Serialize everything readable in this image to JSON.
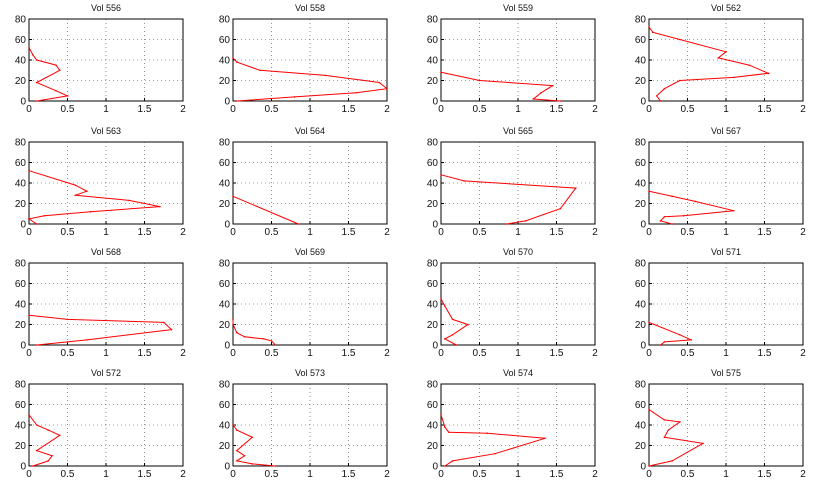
{
  "chart_data": {
    "type": "line",
    "layout": "4x4 small multiples",
    "grid": true,
    "axes": {
      "xlim": [
        0,
        2
      ],
      "ylim": [
        0,
        80
      ],
      "xticks": [
        "0",
        "0.5",
        "1",
        "1.5",
        "2"
      ],
      "yticks": [
        "0",
        "20",
        "40",
        "60",
        "80"
      ]
    },
    "colors": {
      "series": "#ff0000",
      "background": "#ffffff",
      "axes": "#000000"
    },
    "panels": [
      {
        "title": "Vol 556",
        "x": [
          0.1,
          0.5,
          0.35,
          0.1,
          0.4,
          0.35,
          0.1,
          0.05,
          0.0
        ],
        "y": [
          0,
          5,
          10,
          18,
          30,
          35,
          40,
          45,
          52
        ]
      },
      {
        "title": "Vol 558",
        "x": [
          0.05,
          0.8,
          1.6,
          2.0,
          1.9,
          1.2,
          0.35,
          0.05,
          0.0
        ],
        "y": [
          0,
          4,
          8,
          12,
          18,
          25,
          30,
          38,
          42
        ]
      },
      {
        "title": "Vol 559",
        "x": [
          1.55,
          1.2,
          1.3,
          1.45,
          0.5,
          0.0
        ],
        "y": [
          0,
          2,
          8,
          15,
          20,
          28
        ]
      },
      {
        "title": "Vol 562",
        "x": [
          0.15,
          0.1,
          0.2,
          0.4,
          1.1,
          1.55,
          1.3,
          0.9,
          1.0,
          0.4,
          0.05,
          0.0
        ],
        "y": [
          0,
          5,
          12,
          20,
          23,
          27,
          35,
          42,
          48,
          60,
          67,
          72
        ]
      },
      {
        "title": "Vol 563",
        "x": [
          0.1,
          0.0,
          0.2,
          0.8,
          1.7,
          1.3,
          0.6,
          0.75,
          0.6,
          0.0
        ],
        "y": [
          0,
          5,
          8,
          12,
          17,
          23,
          28,
          32,
          38,
          52
        ]
      },
      {
        "title": "Vol 564",
        "x": [
          0.85,
          0.0
        ],
        "y": [
          0,
          27
        ]
      },
      {
        "title": "Vol 565",
        "x": [
          0.85,
          1.1,
          1.55,
          1.75,
          0.3,
          0.0
        ],
        "y": [
          0,
          3,
          15,
          35,
          42,
          48
        ]
      },
      {
        "title": "Vol 567",
        "x": [
          0.3,
          0.15,
          0.2,
          0.45,
          1.1,
          0.6,
          0.3,
          0.0
        ],
        "y": [
          0,
          3,
          7,
          8,
          13,
          22,
          27,
          32
        ]
      },
      {
        "title": "Vol 568",
        "x": [
          0.1,
          0.5,
          0.75,
          1.85,
          1.75,
          0.5,
          0.0
        ],
        "y": [
          0,
          3,
          5,
          15,
          22,
          25,
          29
        ]
      },
      {
        "title": "Vol 569",
        "x": [
          0.55,
          0.5,
          0.4,
          0.15,
          0.05,
          0.0,
          0.0
        ],
        "y": [
          0,
          4,
          6,
          8,
          12,
          20,
          25
        ]
      },
      {
        "title": "Vol 570",
        "x": [
          0.2,
          0.05,
          0.15,
          0.35,
          0.15,
          0.05,
          0.0
        ],
        "y": [
          0,
          6,
          10,
          20,
          25,
          38,
          45
        ]
      },
      {
        "title": "Vol 571",
        "x": [
          0.15,
          0.2,
          0.55,
          0.4,
          0.0
        ],
        "y": [
          0,
          3,
          5,
          10,
          22
        ]
      },
      {
        "title": "Vol 572",
        "x": [
          0.05,
          0.25,
          0.3,
          0.1,
          0.4,
          0.25,
          0.1,
          0.0
        ],
        "y": [
          0,
          5,
          10,
          15,
          30,
          35,
          40,
          50
        ]
      },
      {
        "title": "Vol 573",
        "x": [
          0.55,
          0.25,
          0.05,
          0.15,
          0.05,
          0.25,
          0.05,
          0.0
        ],
        "y": [
          0,
          2,
          5,
          10,
          15,
          28,
          35,
          40
        ]
      },
      {
        "title": "Vol 574",
        "x": [
          0.05,
          0.15,
          0.7,
          1.35,
          0.6,
          0.1,
          0.05,
          0.0
        ],
        "y": [
          0,
          5,
          12,
          27,
          32,
          33,
          38,
          50
        ]
      },
      {
        "title": "Vol 575",
        "x": [
          0.0,
          0.3,
          0.7,
          0.2,
          0.25,
          0.4,
          0.2,
          0.0
        ],
        "y": [
          0,
          5,
          22,
          28,
          35,
          43,
          45,
          55
        ]
      }
    ]
  }
}
